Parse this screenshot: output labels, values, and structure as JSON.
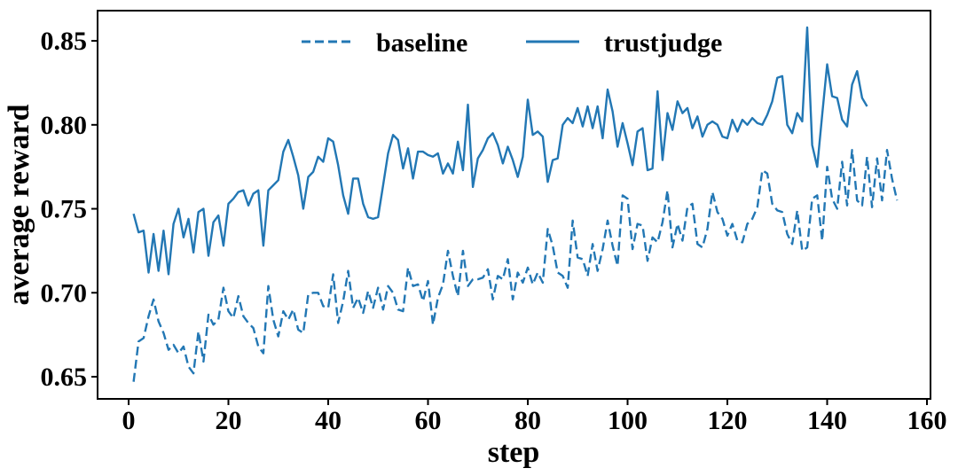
{
  "chart_data": {
    "type": "line",
    "title": "",
    "xlabel": "step",
    "ylabel": "average reward",
    "xlim": [
      -6.22,
      160.71
    ],
    "ylim": [
      0.6368,
      0.868
    ],
    "xticks": [
      0,
      20,
      40,
      60,
      80,
      100,
      120,
      140,
      160
    ],
    "yticks": [
      0.65,
      0.7,
      0.75,
      0.8,
      0.85
    ],
    "ytick_labels": [
      "0.65",
      "0.70",
      "0.75",
      "0.80",
      "0.85"
    ],
    "grid": false,
    "legend_position": "upper center",
    "line_color": "#2277b4",
    "series": [
      {
        "name": "baseline",
        "style": "dashed",
        "x_start": 1,
        "values": [
          0.647,
          0.671,
          0.673,
          0.686,
          0.696,
          0.683,
          0.676,
          0.666,
          0.669,
          0.664,
          0.668,
          0.656,
          0.652,
          0.677,
          0.659,
          0.687,
          0.681,
          0.684,
          0.703,
          0.689,
          0.685,
          0.698,
          0.686,
          0.682,
          0.679,
          0.668,
          0.664,
          0.704,
          0.684,
          0.674,
          0.689,
          0.684,
          0.69,
          0.678,
          0.676,
          0.699,
          0.7,
          0.7,
          0.692,
          0.691,
          0.711,
          0.682,
          0.695,
          0.713,
          0.691,
          0.697,
          0.688,
          0.701,
          0.691,
          0.703,
          0.69,
          0.704,
          0.7,
          0.69,
          0.689,
          0.715,
          0.704,
          0.705,
          0.695,
          0.707,
          0.681,
          0.697,
          0.705,
          0.725,
          0.71,
          0.698,
          0.725,
          0.704,
          0.708,
          0.708,
          0.709,
          0.714,
          0.696,
          0.71,
          0.708,
          0.72,
          0.696,
          0.712,
          0.706,
          0.715,
          0.705,
          0.712,
          0.706,
          0.738,
          0.728,
          0.712,
          0.71,
          0.703,
          0.743,
          0.721,
          0.72,
          0.71,
          0.729,
          0.713,
          0.726,
          0.743,
          0.728,
          0.716,
          0.758,
          0.756,
          0.726,
          0.741,
          0.74,
          0.719,
          0.733,
          0.73,
          0.742,
          0.761,
          0.727,
          0.741,
          0.731,
          0.751,
          0.753,
          0.729,
          0.727,
          0.738,
          0.76,
          0.748,
          0.744,
          0.734,
          0.741,
          0.731,
          0.73,
          0.741,
          0.744,
          0.751,
          0.773,
          0.771,
          0.753,
          0.749,
          0.748,
          0.735,
          0.729,
          0.749,
          0.725,
          0.727,
          0.756,
          0.758,
          0.731,
          0.775,
          0.756,
          0.75,
          0.778,
          0.752,
          0.785,
          0.755,
          0.752,
          0.781,
          0.751,
          0.78,
          0.755,
          0.785,
          0.768,
          0.755
        ]
      },
      {
        "name": "trustjudge",
        "style": "solid",
        "x_start": 1,
        "values": [
          0.747,
          0.736,
          0.737,
          0.712,
          0.735,
          0.713,
          0.737,
          0.711,
          0.741,
          0.75,
          0.733,
          0.744,
          0.724,
          0.748,
          0.75,
          0.722,
          0.742,
          0.746,
          0.728,
          0.753,
          0.756,
          0.76,
          0.761,
          0.752,
          0.759,
          0.761,
          0.728,
          0.761,
          0.764,
          0.767,
          0.784,
          0.791,
          0.781,
          0.77,
          0.75,
          0.769,
          0.772,
          0.781,
          0.778,
          0.792,
          0.79,
          0.776,
          0.758,
          0.747,
          0.768,
          0.768,
          0.753,
          0.745,
          0.744,
          0.745,
          0.764,
          0.783,
          0.794,
          0.791,
          0.774,
          0.786,
          0.768,
          0.784,
          0.784,
          0.782,
          0.781,
          0.783,
          0.771,
          0.777,
          0.771,
          0.79,
          0.773,
          0.812,
          0.763,
          0.78,
          0.785,
          0.792,
          0.795,
          0.788,
          0.777,
          0.787,
          0.779,
          0.769,
          0.781,
          0.815,
          0.794,
          0.796,
          0.793,
          0.766,
          0.779,
          0.78,
          0.8,
          0.804,
          0.801,
          0.81,
          0.799,
          0.811,
          0.798,
          0.811,
          0.792,
          0.821,
          0.808,
          0.787,
          0.801,
          0.789,
          0.776,
          0.796,
          0.798,
          0.773,
          0.774,
          0.82,
          0.779,
          0.807,
          0.797,
          0.814,
          0.807,
          0.81,
          0.798,
          0.805,
          0.793,
          0.8,
          0.802,
          0.8,
          0.793,
          0.792,
          0.803,
          0.796,
          0.803,
          0.8,
          0.804,
          0.801,
          0.8,
          0.806,
          0.814,
          0.828,
          0.829,
          0.8,
          0.795,
          0.807,
          0.802,
          0.858,
          0.788,
          0.775,
          0.806,
          0.836,
          0.817,
          0.816,
          0.803,
          0.799,
          0.824,
          0.832,
          0.816,
          0.811
        ]
      }
    ]
  }
}
